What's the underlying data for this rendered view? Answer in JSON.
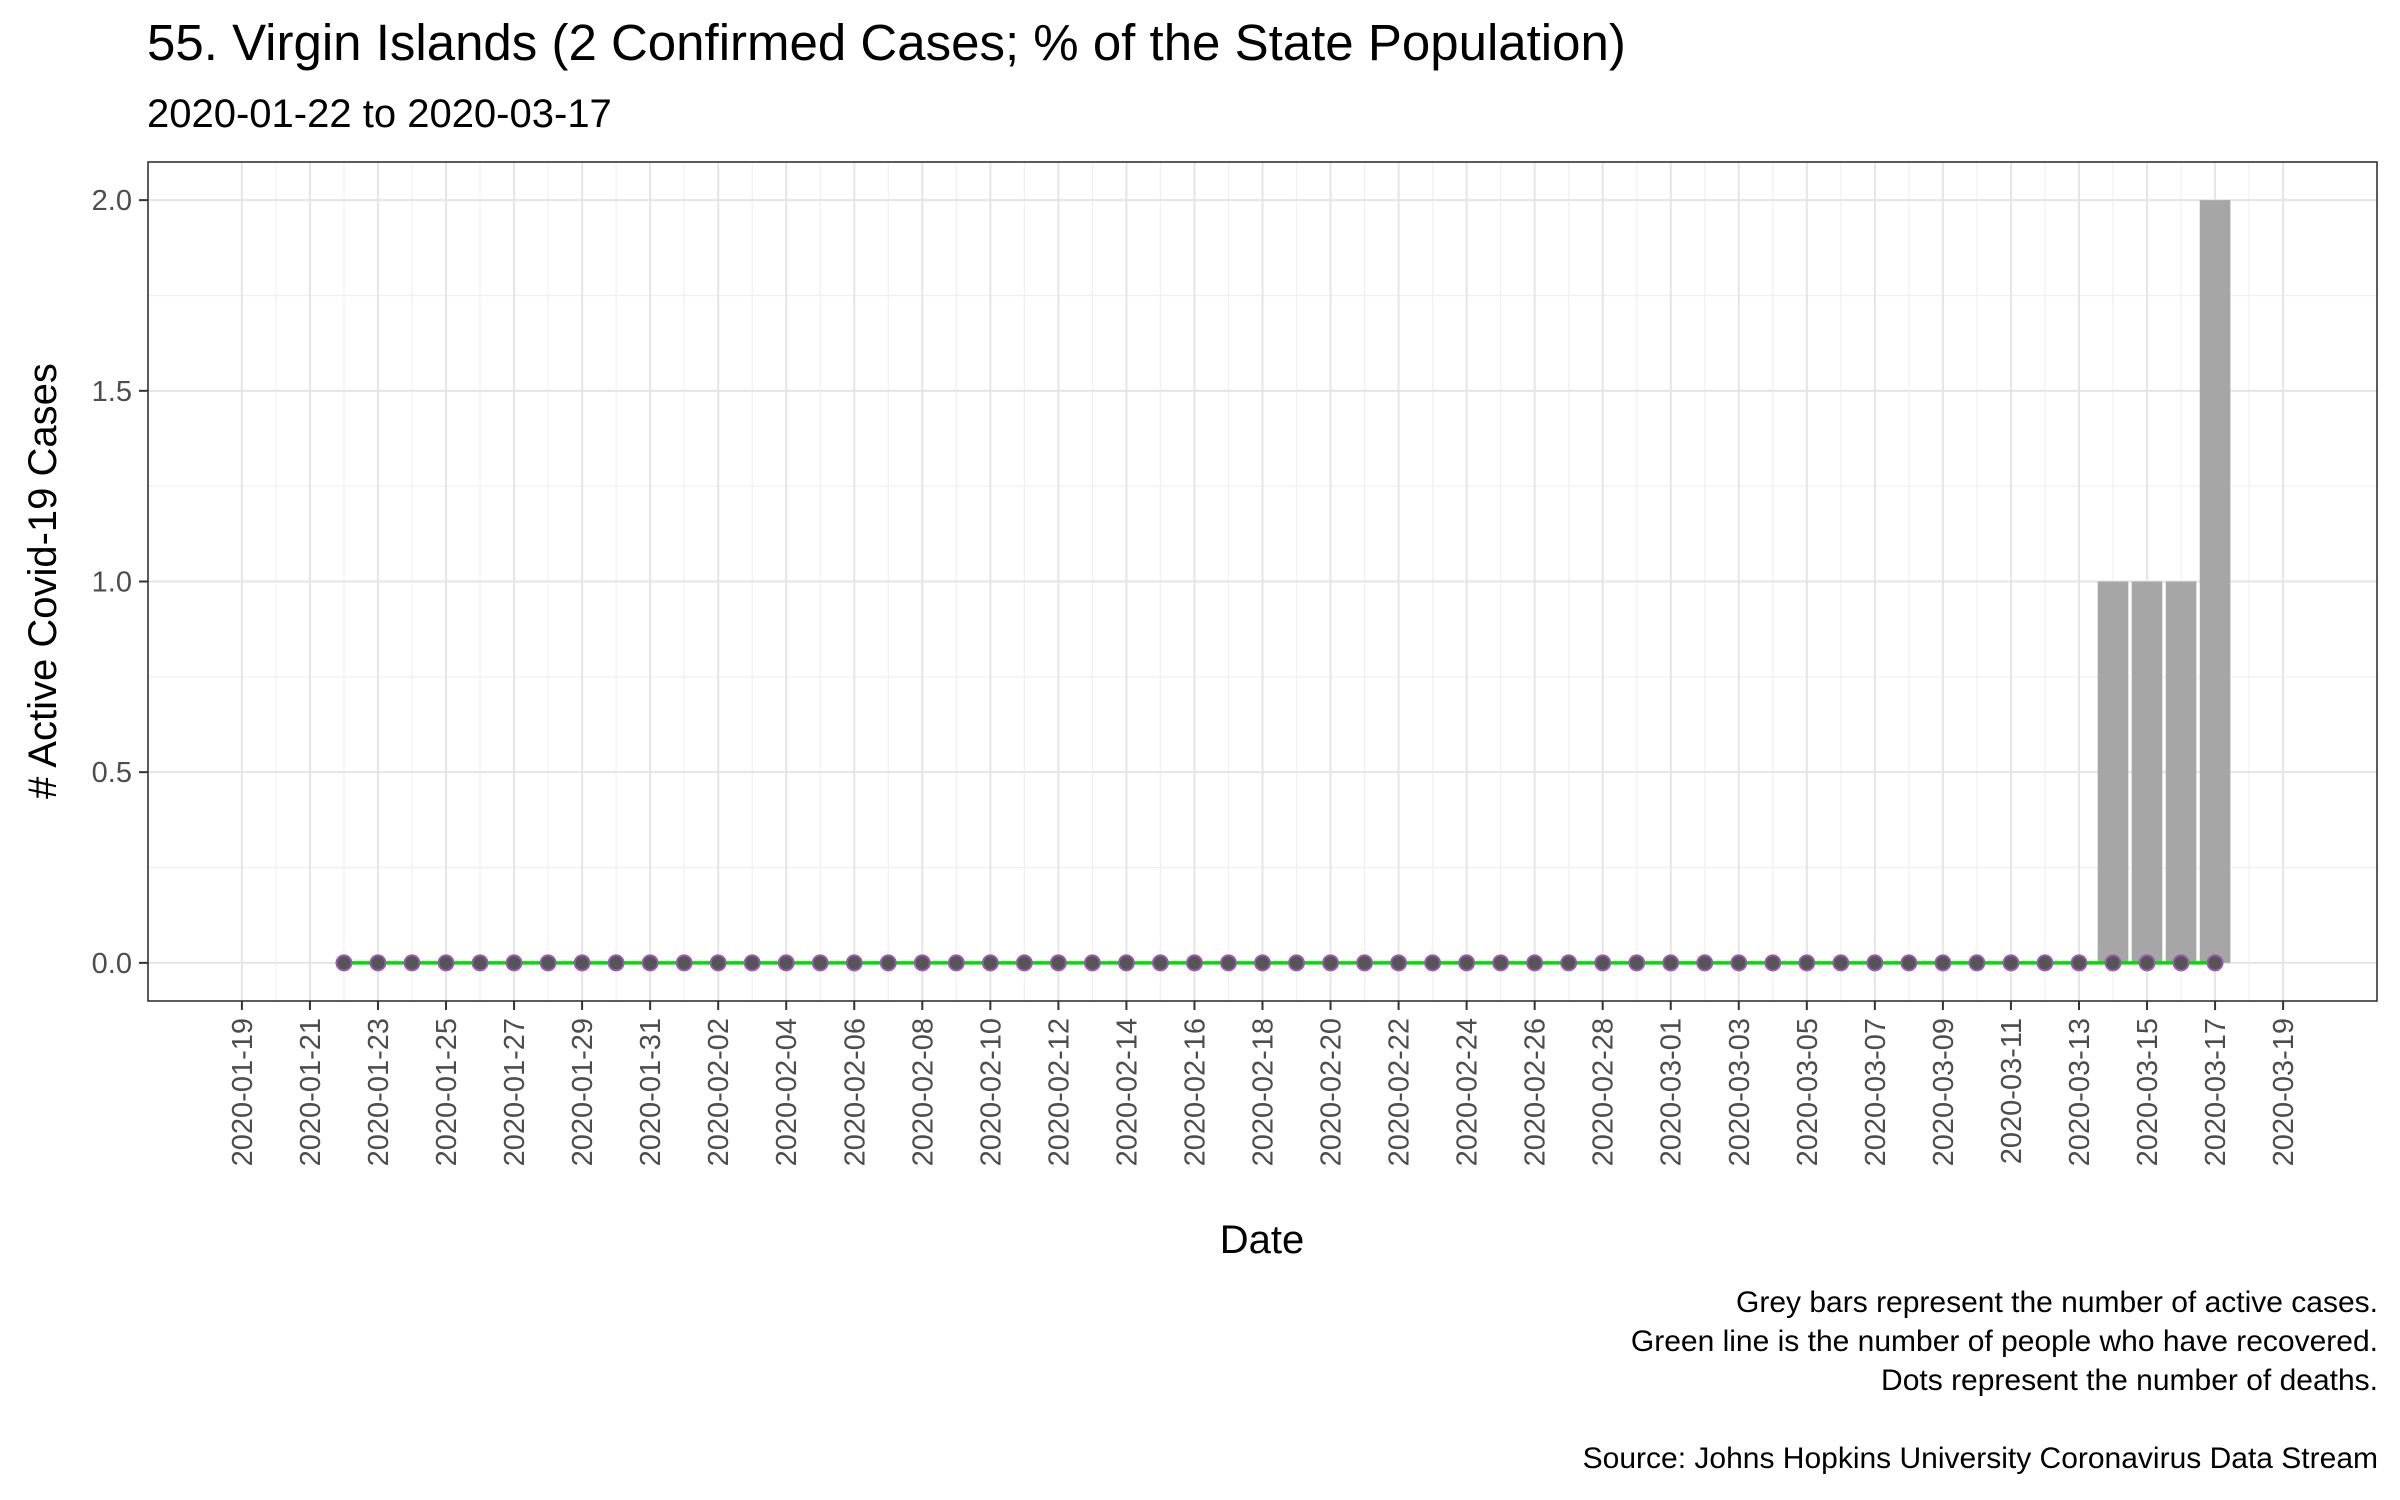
{
  "chart_data": {
    "type": "bar",
    "title": "55. Virgin Islands (2 Confirmed Cases; % of the State Population)",
    "subtitle": "2020-01-22 to 2020-03-17",
    "xlabel": "Date",
    "ylabel": "# Active Covid-19 Cases",
    "xlim": [
      "2020-01-19",
      "2020-03-19"
    ],
    "ylim": [
      0,
      2
    ],
    "grid": true,
    "y_ticks": [
      "0.0",
      "0.5",
      "1.0",
      "1.5",
      "2.0"
    ],
    "x_ticks": [
      "2020-01-19",
      "2020-01-21",
      "2020-01-23",
      "2020-01-25",
      "2020-01-27",
      "2020-01-29",
      "2020-01-31",
      "2020-02-02",
      "2020-02-04",
      "2020-02-06",
      "2020-02-08",
      "2020-02-10",
      "2020-02-12",
      "2020-02-14",
      "2020-02-16",
      "2020-02-18",
      "2020-02-20",
      "2020-02-22",
      "2020-02-24",
      "2020-02-26",
      "2020-02-28",
      "2020-03-01",
      "2020-03-03",
      "2020-03-05",
      "2020-03-07",
      "2020-03-09",
      "2020-03-11",
      "2020-03-13",
      "2020-03-15",
      "2020-03-17",
      "2020-03-19"
    ],
    "series": [
      {
        "name": "Active cases",
        "mark": "bar",
        "color": "#a6a6a6",
        "start_date": "2020-01-22",
        "values": [
          0,
          0,
          0,
          0,
          0,
          0,
          0,
          0,
          0,
          0,
          0,
          0,
          0,
          0,
          0,
          0,
          0,
          0,
          0,
          0,
          0,
          0,
          0,
          0,
          0,
          0,
          0,
          0,
          0,
          0,
          0,
          0,
          0,
          0,
          0,
          0,
          0,
          0,
          0,
          0,
          0,
          0,
          0,
          0,
          0,
          0,
          0,
          0,
          0,
          0,
          0,
          0,
          1,
          1,
          1,
          2
        ]
      },
      {
        "name": "Recovered",
        "mark": "line",
        "color": "#00dd00",
        "start_date": "2020-01-22",
        "values": [
          0,
          0,
          0,
          0,
          0,
          0,
          0,
          0,
          0,
          0,
          0,
          0,
          0,
          0,
          0,
          0,
          0,
          0,
          0,
          0,
          0,
          0,
          0,
          0,
          0,
          0,
          0,
          0,
          0,
          0,
          0,
          0,
          0,
          0,
          0,
          0,
          0,
          0,
          0,
          0,
          0,
          0,
          0,
          0,
          0,
          0,
          0,
          0,
          0,
          0,
          0,
          0,
          0,
          0,
          0,
          0
        ]
      },
      {
        "name": "Deaths",
        "mark": "point",
        "color": "#9b59b6",
        "start_date": "2020-01-22",
        "values": [
          0,
          0,
          0,
          0,
          0,
          0,
          0,
          0,
          0,
          0,
          0,
          0,
          0,
          0,
          0,
          0,
          0,
          0,
          0,
          0,
          0,
          0,
          0,
          0,
          0,
          0,
          0,
          0,
          0,
          0,
          0,
          0,
          0,
          0,
          0,
          0,
          0,
          0,
          0,
          0,
          0,
          0,
          0,
          0,
          0,
          0,
          0,
          0,
          0,
          0,
          0,
          0,
          0,
          0,
          0,
          0
        ]
      }
    ],
    "caption": [
      "Grey bars represent the number of active cases.",
      "Green line is the number of people who have recovered.",
      "Dots represent the number of deaths.",
      "",
      "Source: Johns Hopkins University Coronavirus Data Stream"
    ]
  }
}
